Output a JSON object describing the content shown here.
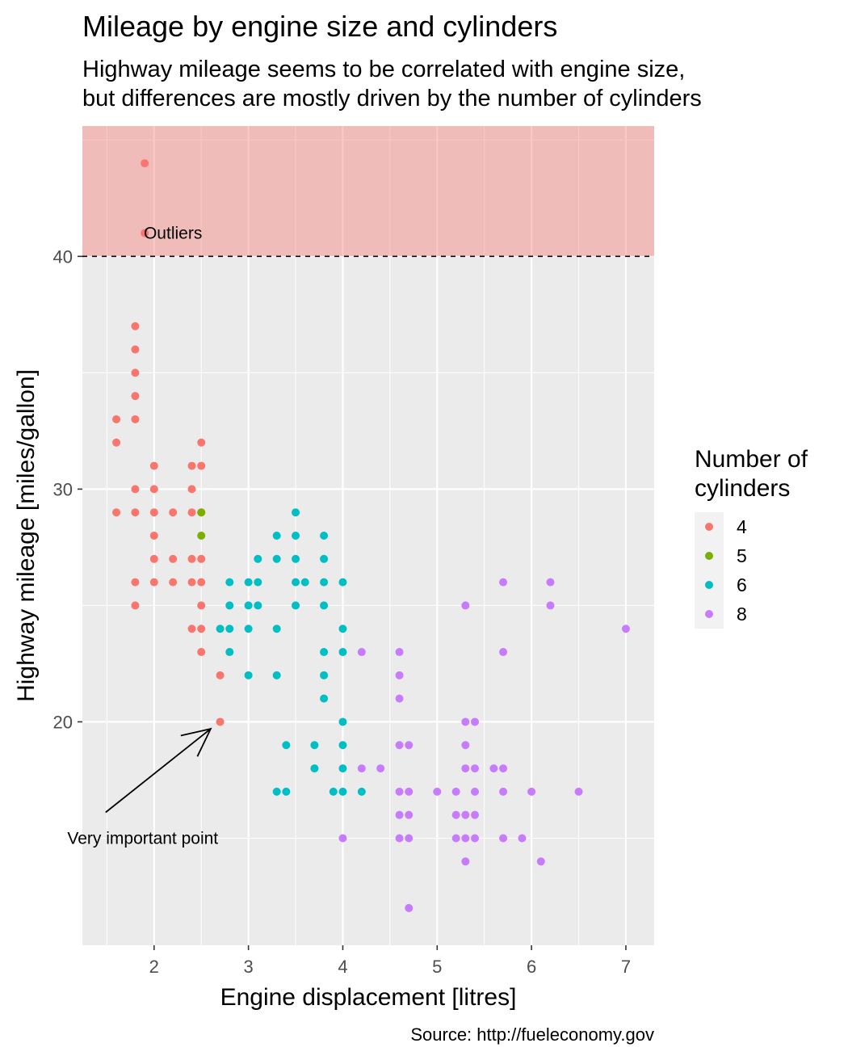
{
  "chart_data": {
    "type": "scatter",
    "title": "Mileage by engine size and cylinders",
    "subtitle_lines": [
      "Highway mileage seems to be correlated with engine size,",
      "but differences are mostly driven by the number of cylinders"
    ],
    "xlabel": "Engine displacement [litres]",
    "ylabel": "Highway mileage [miles/gallon]",
    "caption": "Source: http://fueleconomy.gov",
    "xlim": [
      1.24,
      7.3
    ],
    "ylim": [
      10.4,
      45.6
    ],
    "x_ticks": [
      2,
      3,
      4,
      5,
      6,
      7
    ],
    "y_ticks": [
      20,
      30,
      40
    ],
    "grid": true,
    "legend": {
      "title_lines": [
        "Number of",
        "cylinders"
      ],
      "position": "right"
    },
    "colors": {
      "4": "#F8766D",
      "5": "#7CAE00",
      "6": "#00BFC4",
      "8": "#C77CFF"
    },
    "highlight_band": {
      "y_from": 40,
      "y_to": 45.6,
      "color": "#F8766D",
      "opacity": 0.4
    },
    "reference_line": {
      "y": 40,
      "style": "dashed"
    },
    "annotations": [
      {
        "text": "Outliers",
        "x": 2.2,
        "y": 41
      },
      {
        "text": "Very important point",
        "x": 1.88,
        "y": 15,
        "arrow_to": [
          2.6,
          19.7
        ]
      }
    ],
    "series": [
      {
        "name": "4",
        "points": [
          [
            1.9,
            44
          ],
          [
            1.9,
            41
          ],
          [
            1.8,
            37
          ],
          [
            1.8,
            36
          ],
          [
            1.8,
            35
          ],
          [
            1.8,
            34
          ],
          [
            1.8,
            33
          ],
          [
            1.6,
            33
          ],
          [
            1.6,
            32
          ],
          [
            1.8,
            30
          ],
          [
            1.8,
            29
          ],
          [
            1.6,
            29
          ],
          [
            2.0,
            31
          ],
          [
            2.0,
            30
          ],
          [
            2.0,
            29
          ],
          [
            2.0,
            28
          ],
          [
            2.0,
            27
          ],
          [
            2.0,
            26
          ],
          [
            1.8,
            26
          ],
          [
            1.8,
            25
          ],
          [
            2.2,
            29
          ],
          [
            2.2,
            27
          ],
          [
            2.2,
            26
          ],
          [
            2.4,
            31
          ],
          [
            2.4,
            30
          ],
          [
            2.4,
            29
          ],
          [
            2.4,
            27
          ],
          [
            2.4,
            26
          ],
          [
            2.4,
            24
          ],
          [
            2.5,
            32
          ],
          [
            2.5,
            31
          ],
          [
            2.5,
            29
          ],
          [
            2.5,
            27
          ],
          [
            2.5,
            26
          ],
          [
            2.5,
            25
          ],
          [
            2.5,
            24
          ],
          [
            2.5,
            23
          ],
          [
            2.7,
            22
          ],
          [
            2.7,
            20
          ]
        ]
      },
      {
        "name": "5",
        "points": [
          [
            2.5,
            29
          ],
          [
            2.5,
            28
          ]
        ]
      },
      {
        "name": "6",
        "points": [
          [
            2.7,
            24
          ],
          [
            2.8,
            26
          ],
          [
            2.8,
            25
          ],
          [
            2.8,
            24
          ],
          [
            2.8,
            23
          ],
          [
            3.0,
            26
          ],
          [
            3.0,
            25
          ],
          [
            3.0,
            24
          ],
          [
            3.0,
            22
          ],
          [
            3.1,
            27
          ],
          [
            3.1,
            26
          ],
          [
            3.1,
            25
          ],
          [
            3.3,
            28
          ],
          [
            3.3,
            27
          ],
          [
            3.3,
            24
          ],
          [
            3.3,
            22
          ],
          [
            3.3,
            17
          ],
          [
            3.4,
            19
          ],
          [
            3.4,
            17
          ],
          [
            3.5,
            29
          ],
          [
            3.5,
            28
          ],
          [
            3.5,
            27
          ],
          [
            3.5,
            26
          ],
          [
            3.5,
            25
          ],
          [
            3.6,
            26
          ],
          [
            3.7,
            19
          ],
          [
            3.7,
            18
          ],
          [
            3.8,
            28
          ],
          [
            3.8,
            27
          ],
          [
            3.8,
            26
          ],
          [
            3.8,
            25
          ],
          [
            3.8,
            23
          ],
          [
            3.8,
            22
          ],
          [
            3.8,
            21
          ],
          [
            3.9,
            17
          ],
          [
            4.0,
            26
          ],
          [
            4.0,
            24
          ],
          [
            4.0,
            23
          ],
          [
            4.0,
            20
          ],
          [
            4.0,
            19
          ],
          [
            4.0,
            18
          ],
          [
            4.0,
            17
          ],
          [
            4.2,
            17
          ]
        ]
      },
      {
        "name": "8",
        "points": [
          [
            4.0,
            15
          ],
          [
            4.2,
            23
          ],
          [
            4.2,
            18
          ],
          [
            4.4,
            18
          ],
          [
            4.6,
            23
          ],
          [
            4.6,
            22
          ],
          [
            4.6,
            21
          ],
          [
            4.6,
            19
          ],
          [
            4.6,
            17
          ],
          [
            4.6,
            16
          ],
          [
            4.6,
            15
          ],
          [
            4.7,
            19
          ],
          [
            4.7,
            17
          ],
          [
            4.7,
            16
          ],
          [
            4.7,
            15
          ],
          [
            4.7,
            12
          ],
          [
            5.0,
            17
          ],
          [
            5.2,
            17
          ],
          [
            5.2,
            16
          ],
          [
            5.2,
            15
          ],
          [
            5.3,
            25
          ],
          [
            5.3,
            20
          ],
          [
            5.3,
            19
          ],
          [
            5.3,
            18
          ],
          [
            5.3,
            16
          ],
          [
            5.3,
            15
          ],
          [
            5.3,
            14
          ],
          [
            5.4,
            20
          ],
          [
            5.4,
            18
          ],
          [
            5.4,
            17
          ],
          [
            5.4,
            16
          ],
          [
            5.4,
            15
          ],
          [
            5.6,
            18
          ],
          [
            5.7,
            26
          ],
          [
            5.7,
            23
          ],
          [
            5.7,
            18
          ],
          [
            5.7,
            17
          ],
          [
            5.7,
            15
          ],
          [
            5.9,
            15
          ],
          [
            6.0,
            17
          ],
          [
            6.1,
            14
          ],
          [
            6.2,
            26
          ],
          [
            6.2,
            25
          ],
          [
            6.5,
            17
          ],
          [
            7.0,
            24
          ]
        ]
      }
    ]
  }
}
